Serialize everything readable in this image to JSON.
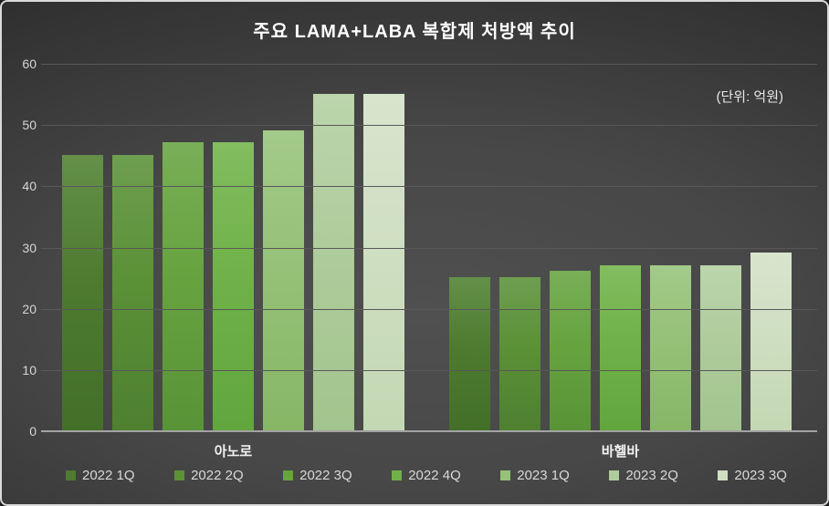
{
  "chart_data": {
    "type": "bar",
    "title": "주요 LAMA+LABA 복합제 처방액 추이",
    "unit_annotation": "(단위: 억원)",
    "categories": [
      "아노로",
      "바헬바"
    ],
    "series": [
      {
        "name": "2022 1Q",
        "values": [
          45,
          25
        ],
        "color": "#4e7b30",
        "color_top": "#649049",
        "color_bottom": "#436f29"
      },
      {
        "name": "2022 2Q",
        "values": [
          45,
          25
        ],
        "color": "#5b9137",
        "color_top": "#6e9e50",
        "color_bottom": "#4e8030"
      },
      {
        "name": "2022 3Q",
        "values": [
          47,
          26
        ],
        "color": "#67a33f",
        "color_top": "#79af58",
        "color_bottom": "#589437"
      },
      {
        "name": "2022 4Q",
        "values": [
          47,
          27
        ],
        "color": "#70b249",
        "color_top": "#82bd60",
        "color_bottom": "#61a63e"
      },
      {
        "name": "2023 1Q",
        "values": [
          49,
          27
        ],
        "color": "#96c178",
        "color_top": "#a3ca89",
        "color_bottom": "#86b765"
      },
      {
        "name": "2023 2Q",
        "values": [
          55,
          27
        ],
        "color": "#afcc9c",
        "color_top": "#bcd5ac",
        "color_bottom": "#a2c48d"
      },
      {
        "name": "2023 3Q",
        "values": [
          55,
          29
        ],
        "color": "#cfdfc2",
        "color_top": "#d8e5cd",
        "color_bottom": "#c3d8b3"
      }
    ],
    "y_axis": {
      "min": 0,
      "max": 60,
      "ticks": [
        0,
        10,
        20,
        30,
        40,
        50,
        60
      ]
    },
    "grid": true,
    "legend_position": "bottom"
  }
}
